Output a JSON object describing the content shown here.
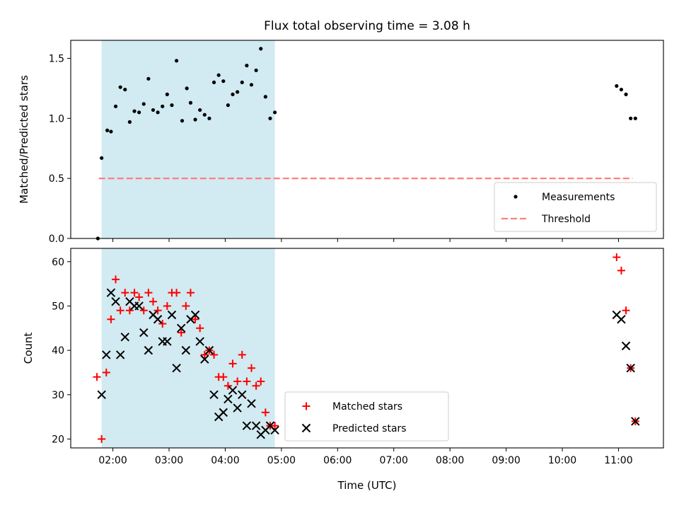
{
  "chart_data": {
    "title": "Flux total observing time = 3.08 h",
    "xlabel": "Time (UTC)",
    "x_ticks": [
      "02:00",
      "03:00",
      "04:00",
      "05:00",
      "06:00",
      "07:00",
      "08:00",
      "09:00",
      "10:00",
      "11:00"
    ],
    "x_range": [
      "01:15",
      "11:48"
    ],
    "shaded_interval": [
      "01:48",
      "04:53"
    ],
    "shade_color": "#add8e6",
    "panels": [
      {
        "type": "scatter",
        "ylabel": "Matched/Predicted stars",
        "ylim": [
          0,
          1.65
        ],
        "y_ticks": [
          "0.0",
          "0.5",
          "1.0",
          "1.5"
        ],
        "legend_position": "lower-right",
        "threshold": {
          "name": "Threshold",
          "value": 0.5,
          "x_start": "01:45",
          "x_end": "11:15",
          "color": "#ff7f7f"
        },
        "series": [
          {
            "name": "Measurements",
            "color": "#000000",
            "marker": "dot",
            "points": [
              [
                "01:44",
                0.0
              ],
              [
                "01:48",
                0.67
              ],
              [
                "01:54",
                0.9
              ],
              [
                "01:58",
                0.89
              ],
              [
                "02:03",
                1.1
              ],
              [
                "02:08",
                1.26
              ],
              [
                "02:13",
                1.24
              ],
              [
                "02:18",
                0.97
              ],
              [
                "02:23",
                1.06
              ],
              [
                "02:28",
                1.05
              ],
              [
                "02:33",
                1.12
              ],
              [
                "02:38",
                1.33
              ],
              [
                "02:43",
                1.07
              ],
              [
                "02:48",
                1.05
              ],
              [
                "02:53",
                1.1
              ],
              [
                "02:58",
                1.2
              ],
              [
                "03:03",
                1.11
              ],
              [
                "03:08",
                1.48
              ],
              [
                "03:14",
                0.98
              ],
              [
                "03:19",
                1.25
              ],
              [
                "03:23",
                1.13
              ],
              [
                "03:28",
                0.99
              ],
              [
                "03:33",
                1.07
              ],
              [
                "03:38",
                1.03
              ],
              [
                "03:43",
                1.0
              ],
              [
                "03:48",
                1.3
              ],
              [
                "03:53",
                1.36
              ],
              [
                "03:58",
                1.31
              ],
              [
                "04:03",
                1.11
              ],
              [
                "04:08",
                1.2
              ],
              [
                "04:13",
                1.22
              ],
              [
                "04:18",
                1.3
              ],
              [
                "04:23",
                1.44
              ],
              [
                "04:28",
                1.28
              ],
              [
                "04:33",
                1.4
              ],
              [
                "04:38",
                1.58
              ],
              [
                "04:43",
                1.18
              ],
              [
                "04:48",
                1.0
              ],
              [
                "04:53",
                1.05
              ],
              [
                "10:58",
                1.27
              ],
              [
                "11:03",
                1.24
              ],
              [
                "11:08",
                1.2
              ],
              [
                "11:13",
                1.0
              ],
              [
                "11:18",
                1.0
              ]
            ]
          }
        ]
      },
      {
        "type": "scatter",
        "ylabel": "Count",
        "ylim": [
          18,
          63
        ],
        "y_ticks": [
          "20",
          "30",
          "40",
          "50",
          "60"
        ],
        "legend_position": "lower-center",
        "series": [
          {
            "name": "Matched stars",
            "color": "#ff0000",
            "marker": "plus",
            "points": [
              [
                "01:43",
                34
              ],
              [
                "01:48",
                20
              ],
              [
                "01:53",
                35
              ],
              [
                "01:58",
                47
              ],
              [
                "02:03",
                56
              ],
              [
                "02:08",
                49
              ],
              [
                "02:13",
                53
              ],
              [
                "02:18",
                49
              ],
              [
                "02:23",
                53
              ],
              [
                "02:28",
                52
              ],
              [
                "02:33",
                49
              ],
              [
                "02:38",
                53
              ],
              [
                "02:43",
                51
              ],
              [
                "02:48",
                49
              ],
              [
                "02:53",
                46
              ],
              [
                "02:58",
                50
              ],
              [
                "03:03",
                53
              ],
              [
                "03:08",
                53
              ],
              [
                "03:13",
                44
              ],
              [
                "03:18",
                50
              ],
              [
                "03:23",
                53
              ],
              [
                "03:28",
                47
              ],
              [
                "03:33",
                45
              ],
              [
                "03:38",
                39
              ],
              [
                "03:43",
                40
              ],
              [
                "03:48",
                39
              ],
              [
                "03:53",
                34
              ],
              [
                "03:58",
                34
              ],
              [
                "04:03",
                32
              ],
              [
                "04:08",
                37
              ],
              [
                "04:13",
                33
              ],
              [
                "04:18",
                39
              ],
              [
                "04:23",
                33
              ],
              [
                "04:28",
                36
              ],
              [
                "04:33",
                32
              ],
              [
                "04:38",
                33
              ],
              [
                "04:43",
                26
              ],
              [
                "04:48",
                23
              ],
              [
                "04:53",
                23
              ],
              [
                "10:58",
                61
              ],
              [
                "11:03",
                58
              ],
              [
                "11:08",
                49
              ],
              [
                "11:13",
                36
              ],
              [
                "11:18",
                24
              ]
            ]
          },
          {
            "name": "Predicted stars",
            "color": "#000000",
            "marker": "x",
            "points": [
              [
                "01:48",
                30
              ],
              [
                "01:53",
                39
              ],
              [
                "01:58",
                53
              ],
              [
                "02:03",
                51
              ],
              [
                "02:08",
                39
              ],
              [
                "02:13",
                43
              ],
              [
                "02:18",
                51
              ],
              [
                "02:23",
                50
              ],
              [
                "02:28",
                50
              ],
              [
                "02:33",
                44
              ],
              [
                "02:38",
                40
              ],
              [
                "02:43",
                48
              ],
              [
                "02:48",
                47
              ],
              [
                "02:53",
                42
              ],
              [
                "02:58",
                42
              ],
              [
                "03:03",
                48
              ],
              [
                "03:08",
                36
              ],
              [
                "03:13",
                45
              ],
              [
                "03:18",
                40
              ],
              [
                "03:23",
                47
              ],
              [
                "03:28",
                48
              ],
              [
                "03:33",
                42
              ],
              [
                "03:38",
                38
              ],
              [
                "03:43",
                40
              ],
              [
                "03:48",
                30
              ],
              [
                "03:53",
                25
              ],
              [
                "03:58",
                26
              ],
              [
                "04:03",
                29
              ],
              [
                "04:08",
                31
              ],
              [
                "04:13",
                27
              ],
              [
                "04:18",
                30
              ],
              [
                "04:23",
                23
              ],
              [
                "04:28",
                28
              ],
              [
                "04:33",
                23
              ],
              [
                "04:38",
                21
              ],
              [
                "04:43",
                22
              ],
              [
                "04:48",
                23
              ],
              [
                "04:53",
                22
              ],
              [
                "10:58",
                48
              ],
              [
                "11:03",
                47
              ],
              [
                "11:08",
                41
              ],
              [
                "11:13",
                36
              ],
              [
                "11:18",
                24
              ]
            ]
          }
        ]
      }
    ]
  }
}
